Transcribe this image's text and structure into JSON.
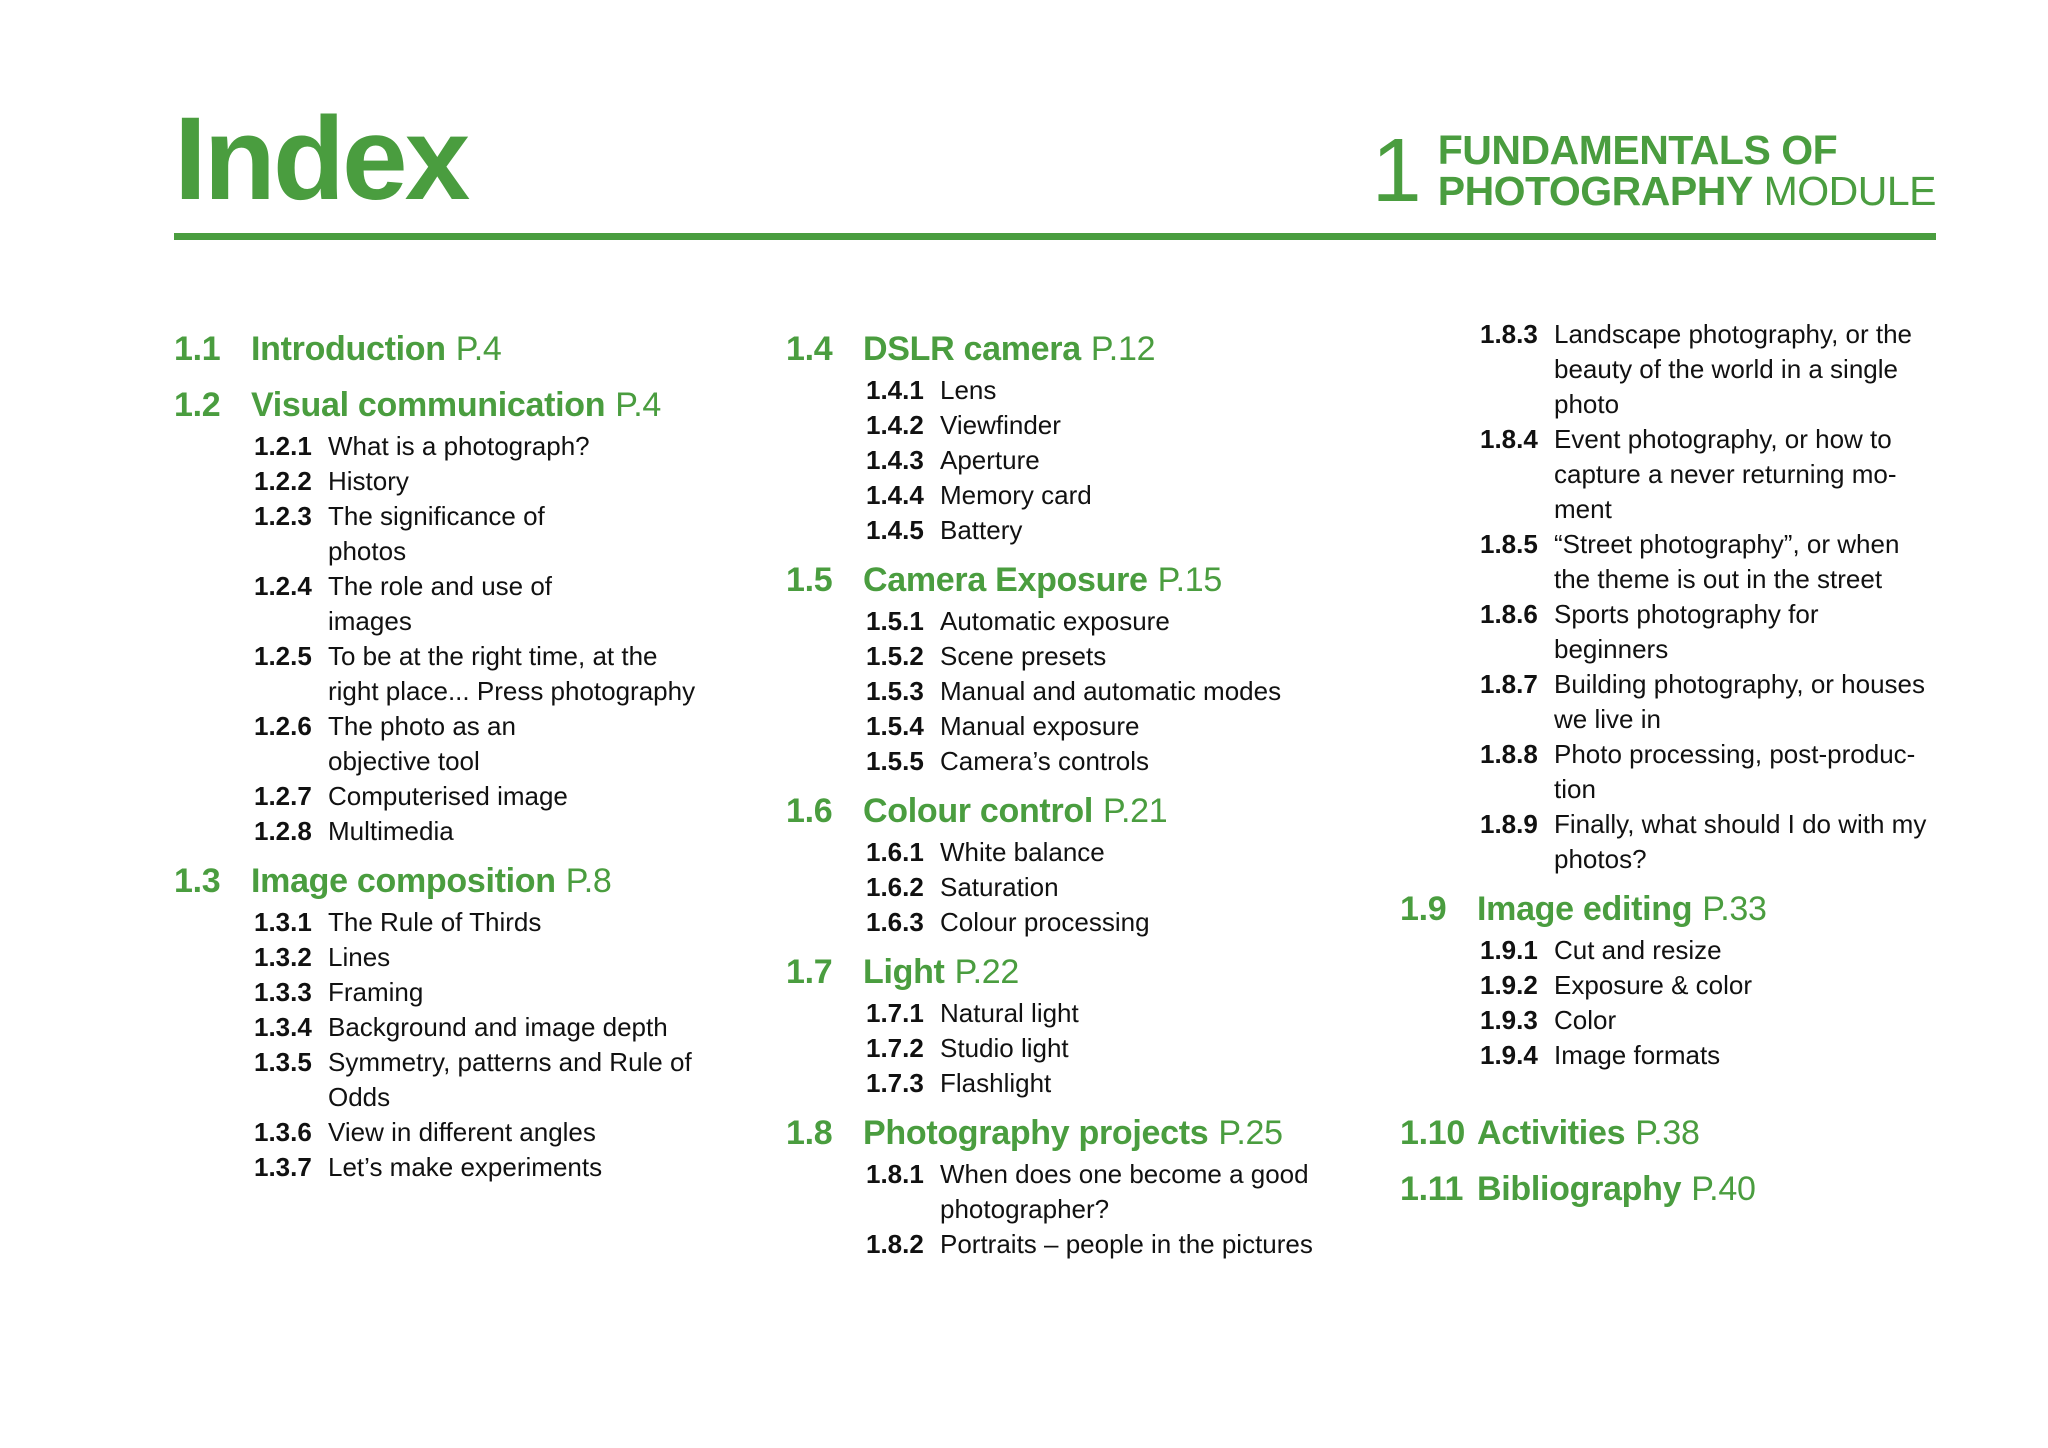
{
  "header": {
    "title": "Index",
    "module_number": "1",
    "module_line1": "FUNDAMENTALS OF",
    "module_line2_bold": "PHOTOGRAPHY",
    "module_line2_light": "MODULE"
  },
  "columns": [
    {
      "sections": [
        {
          "num": "1.1",
          "title": "Introduction",
          "page": "P.4",
          "subs": []
        },
        {
          "num": "1.2",
          "title": "Visual communication",
          "page": "P.4",
          "subs": [
            {
              "num": "1.2.1",
              "label": "What is a photograph?"
            },
            {
              "num": "1.2.2",
              "label": "History"
            },
            {
              "num": "1.2.3",
              "label": "The significance of\nphotos"
            },
            {
              "num": "1.2.4",
              "label": "The role and use of\nimages"
            },
            {
              "num": "1.2.5",
              "label": "To be at the right time, at the\nright place...  Press photography"
            },
            {
              "num": "1.2.6",
              "label": "The photo as an\nobjective tool"
            },
            {
              "num": "1.2.7",
              "label": "Computerised image"
            },
            {
              "num": "1.2.8",
              "label": "Multimedia"
            }
          ]
        },
        {
          "num": "1.3",
          "title": "Image composition",
          "page": "P.8",
          "subs": [
            {
              "num": "1.3.1",
              "label": "The Rule of Thirds"
            },
            {
              "num": "1.3.2",
              "label": "Lines"
            },
            {
              "num": "1.3.3",
              "label": "Framing"
            },
            {
              "num": "1.3.4",
              "label": "Background and image depth"
            },
            {
              "num": "1.3.5",
              "label": "Symmetry, patterns and Rule of\nOdds"
            },
            {
              "num": "1.3.6",
              "label": "View in different angles"
            },
            {
              "num": "1.3.7",
              "label": "Let’s make experiments"
            }
          ]
        }
      ]
    },
    {
      "sections": [
        {
          "num": "1.4",
          "title": "DSLR camera",
          "page": "P.12",
          "subs": [
            {
              "num": "1.4.1",
              "label": "Lens"
            },
            {
              "num": "1.4.2",
              "label": "Viewfinder"
            },
            {
              "num": "1.4.3",
              "label": "Aperture"
            },
            {
              "num": "1.4.4",
              "label": "Memory card"
            },
            {
              "num": "1.4.5",
              "label": "Battery"
            }
          ]
        },
        {
          "num": "1.5",
          "title": "Camera Exposure",
          "page": "P.15",
          "subs": [
            {
              "num": "1.5.1",
              "label": "Automatic exposure"
            },
            {
              "num": "1.5.2",
              "label": "Scene presets"
            },
            {
              "num": "1.5.3",
              "label": "Manual and automatic modes"
            },
            {
              "num": "1.5.4",
              "label": "Manual exposure"
            },
            {
              "num": "1.5.5",
              "label": "Camera’s controls"
            }
          ]
        },
        {
          "num": "1.6",
          "title": "Colour control",
          "page": "P.21",
          "subs": [
            {
              "num": "1.6.1",
              "label": "White balance"
            },
            {
              "num": "1.6.2",
              "label": "Saturation"
            },
            {
              "num": "1.6.3",
              "label": "Colour processing"
            }
          ]
        },
        {
          "num": "1.7",
          "title": "Light",
          "page": "P.22",
          "subs": [
            {
              "num": "1.7.1",
              "label": "Natural light"
            },
            {
              "num": "1.7.2",
              "label": "Studio light"
            },
            {
              "num": "1.7.3",
              "label": "Flashlight"
            }
          ]
        },
        {
          "num": "1.8",
          "title": "Photography projects",
          "page": "P.25",
          "subs": [
            {
              "num": "1.8.1",
              "label": "When does one become a good\nphotographer?"
            },
            {
              "num": "1.8.2",
              "label": "Portraits – people in the pictures"
            }
          ]
        }
      ]
    },
    {
      "sections": [
        {
          "num": "",
          "title": "",
          "page": "",
          "subs": [
            {
              "num": "1.8.3",
              "label": "Landscape photography, or the\nbeauty of the world in a single\nphoto"
            },
            {
              "num": "1.8.4",
              "label": "Event photography, or how to\ncapture a never returning mo-\nment"
            },
            {
              "num": "1.8.5",
              "label": "“Street photography”, or when\nthe theme is out in the street"
            },
            {
              "num": "1.8.6",
              "label": "Sports photography for\nbeginners"
            },
            {
              "num": "1.8.7",
              "label": "Building photography, or houses\nwe live in"
            },
            {
              "num": "1.8.8",
              "label": "Photo processing, post-produc-\ntion"
            },
            {
              "num": "1.8.9",
              "label": "Finally, what should I do with my\nphotos?"
            }
          ]
        },
        {
          "num": "1.9",
          "title": "Image editing",
          "page": "P.33",
          "subs": [
            {
              "num": "1.9.1",
              "label": "Cut and resize"
            },
            {
              "num": "1.9.2",
              "label": "Exposure & color"
            },
            {
              "num": "1.9.3",
              "label": "Color"
            },
            {
              "num": "1.9.4",
              "label": "Image formats"
            }
          ]
        },
        {
          "num": "1.10",
          "title": "Activities",
          "page": "P.38",
          "subs": []
        },
        {
          "num": "1.11",
          "title": "Bibliography",
          "page": "P.40",
          "subs": []
        }
      ]
    }
  ]
}
